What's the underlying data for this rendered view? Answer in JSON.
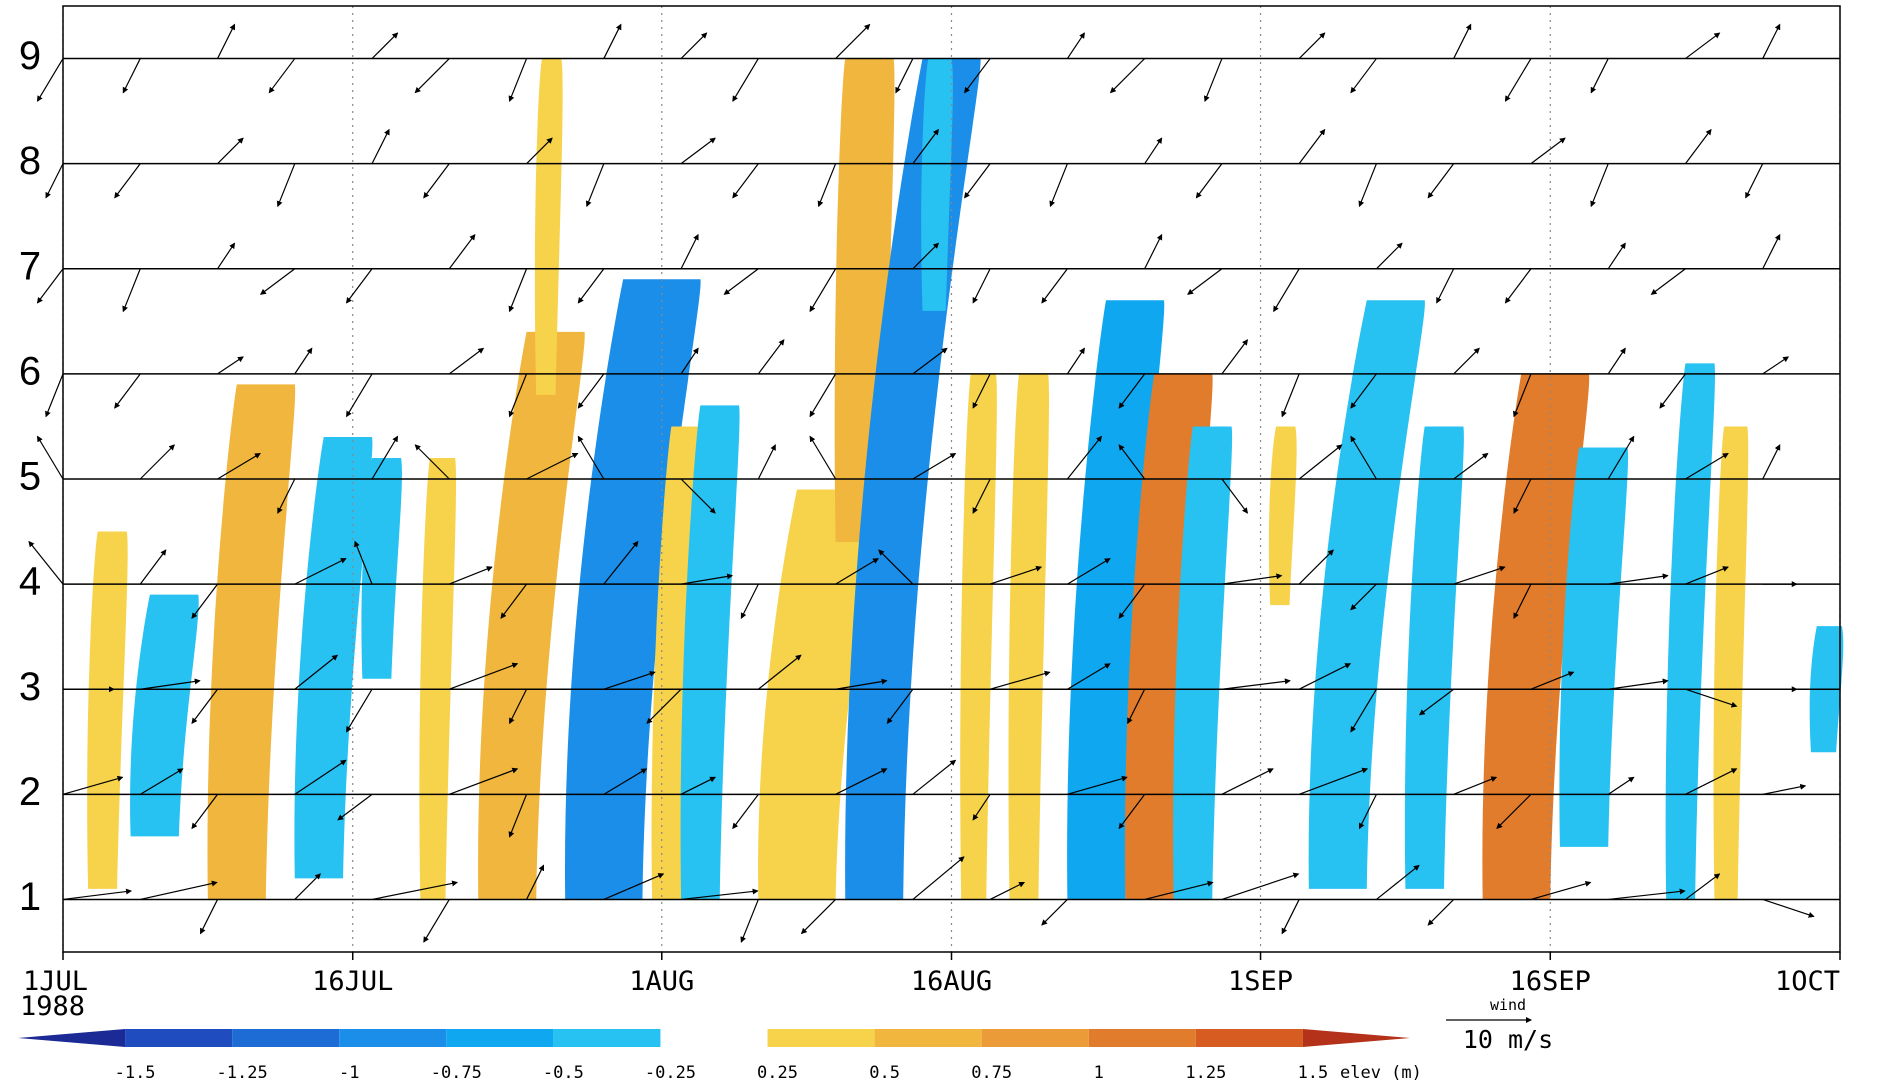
{
  "chart_data": {
    "type": "hovmoller",
    "year_label": "1988",
    "xlim": [
      0,
      92
    ],
    "xticks": [
      {
        "value": 0,
        "label": "1JUL"
      },
      {
        "value": 15,
        "label": "16JUL"
      },
      {
        "value": 31,
        "label": "1AUG"
      },
      {
        "value": 46,
        "label": "16AUG"
      },
      {
        "value": 62,
        "label": "1SEP"
      },
      {
        "value": 77,
        "label": "16SEP"
      },
      {
        "value": 92,
        "label": "1OCT"
      }
    ],
    "ylim": [
      0.5,
      9.5
    ],
    "yticks": [
      1,
      2,
      3,
      4,
      5,
      6,
      7,
      8,
      9
    ],
    "grid": true,
    "colorbar": {
      "label": "elev (m)",
      "levels": [
        -1.5,
        -1.25,
        -1,
        -0.75,
        -0.5,
        -0.25,
        0.25,
        0.5,
        0.75,
        1,
        1.25,
        1.5
      ],
      "colors": [
        "#1b2a94",
        "#1f4cbf",
        "#1d6bd5",
        "#1a8ee8",
        "#0fa8f0",
        "#27c2f2",
        "#ffffff",
        "#f7d34c",
        "#f1b63d",
        "#eb9c38",
        "#e17c2d",
        "#d75c22",
        "#b5321a"
      ]
    },
    "elevation": [
      {
        "day": 1.3,
        "width": 1.5,
        "from": 1.1,
        "to": 4.5,
        "tilt": 0.5,
        "value": 0.3
      },
      {
        "day": 3.5,
        "width": 2.5,
        "from": 1.6,
        "to": 3.9,
        "tilt": 1,
        "value": -0.4
      },
      {
        "day": 7.5,
        "width": 3,
        "from": 1.0,
        "to": 5.9,
        "tilt": 1.5,
        "value": 0.6
      },
      {
        "day": 12,
        "width": 2.5,
        "from": 1.2,
        "to": 5.4,
        "tilt": 1.5,
        "value": -0.4
      },
      {
        "day": 15.5,
        "width": 1.5,
        "from": 3.1,
        "to": 5.2,
        "tilt": 0.5,
        "value": -0.3
      },
      {
        "day": 18.5,
        "width": 1.3,
        "from": 1.0,
        "to": 5.2,
        "tilt": 0.5,
        "value": 0.3
      },
      {
        "day": 21.5,
        "width": 3,
        "from": 1.0,
        "to": 6.4,
        "tilt": 2.5,
        "value": 0.6
      },
      {
        "day": 24.5,
        "width": 1,
        "from": 5.8,
        "to": 9.0,
        "tilt": 0.3,
        "value": 0.3
      },
      {
        "day": 26,
        "width": 4,
        "from": 1.0,
        "to": 6.9,
        "tilt": 3,
        "value": -0.8
      },
      {
        "day": 30.5,
        "width": 2,
        "from": 1.0,
        "to": 5.5,
        "tilt": 1,
        "value": 0.3
      },
      {
        "day": 32,
        "width": 2,
        "from": 1.0,
        "to": 5.7,
        "tilt": 1,
        "value": -0.4
      },
      {
        "day": 36,
        "width": 4,
        "from": 1.0,
        "to": 4.9,
        "tilt": 2,
        "value": 0.4
      },
      {
        "day": 40,
        "width": 2.5,
        "from": 4.4,
        "to": 9.0,
        "tilt": 0.5,
        "value": 0.5
      },
      {
        "day": 40.5,
        "width": 3,
        "from": 1.0,
        "to": 9.0,
        "tilt": 4,
        "value": -0.9
      },
      {
        "day": 44.5,
        "width": 1.2,
        "from": 6.6,
        "to": 9.0,
        "tilt": 0.3,
        "value": -0.4
      },
      {
        "day": 46.5,
        "width": 1.3,
        "from": 1.0,
        "to": 6.0,
        "tilt": 0.5,
        "value": 0.3
      },
      {
        "day": 49,
        "width": 1.5,
        "from": 1.0,
        "to": 6.0,
        "tilt": 0.5,
        "value": 0.25
      },
      {
        "day": 52,
        "width": 3,
        "from": 1.0,
        "to": 6.7,
        "tilt": 2,
        "value": -0.6
      },
      {
        "day": 55,
        "width": 3,
        "from": 1.0,
        "to": 6.0,
        "tilt": 1.5,
        "value": 1.1
      },
      {
        "day": 57.5,
        "width": 2,
        "from": 1.0,
        "to": 5.5,
        "tilt": 1,
        "value": -0.5
      },
      {
        "day": 62.5,
        "width": 1,
        "from": 3.8,
        "to": 5.5,
        "tilt": 0.3,
        "value": 0.3
      },
      {
        "day": 64.5,
        "width": 3,
        "from": 1.1,
        "to": 6.7,
        "tilt": 3,
        "value": -0.5
      },
      {
        "day": 69.5,
        "width": 2,
        "from": 1.1,
        "to": 5.5,
        "tilt": 1,
        "value": -0.4
      },
      {
        "day": 73.5,
        "width": 3.5,
        "from": 1.0,
        "to": 6.0,
        "tilt": 2,
        "value": 1.0
      },
      {
        "day": 77.5,
        "width": 2.5,
        "from": 1.5,
        "to": 5.3,
        "tilt": 1,
        "value": -0.5
      },
      {
        "day": 83,
        "width": 1.5,
        "from": 1.0,
        "to": 6.1,
        "tilt": 1,
        "value": -0.5
      },
      {
        "day": 85.5,
        "width": 1.2,
        "from": 1.0,
        "to": 5.5,
        "tilt": 0.5,
        "value": 0.3
      },
      {
        "day": 90.5,
        "width": 1.3,
        "from": 2.4,
        "to": 3.6,
        "tilt": 0.3,
        "value": -0.3
      }
    ],
    "wind_key": {
      "title": "wind",
      "label": "10 m/s",
      "speed": 10
    },
    "wind_days": [
      0,
      4,
      8,
      12,
      16,
      20,
      24,
      28,
      32,
      36,
      40,
      44,
      48,
      52,
      56,
      60,
      64,
      68,
      72,
      76,
      80,
      84,
      88
    ],
    "wind": [
      {
        "u": [
          8,
          9,
          -2,
          3,
          10,
          -3,
          2,
          7,
          9,
          -2,
          -4,
          6,
          4,
          -3,
          8,
          9,
          -2,
          5,
          -3,
          7,
          9,
          4,
          6
        ],
        "v": [
          1,
          2,
          -4,
          3,
          2,
          -5,
          4,
          3,
          1,
          -5,
          -4,
          5,
          2,
          -3,
          2,
          3,
          -4,
          4,
          -3,
          2,
          1,
          3,
          -2
        ]
      },
      {
        "u": [
          7,
          5,
          -3,
          6,
          -4,
          8,
          -2,
          5,
          4,
          -3,
          6,
          5,
          -2,
          7,
          -3,
          6,
          8,
          -2,
          5,
          -4,
          3,
          6,
          5
        ],
        "v": [
          2,
          3,
          -4,
          4,
          -3,
          3,
          -5,
          3,
          2,
          -4,
          3,
          4,
          -3,
          2,
          -4,
          3,
          3,
          -4,
          2,
          -4,
          2,
          3,
          1
        ]
      },
      {
        "u": [
          6,
          7,
          -3,
          5,
          -3,
          8,
          -2,
          6,
          -4,
          5,
          6,
          -3,
          7,
          5,
          -2,
          8,
          6,
          -3,
          -4,
          5,
          7,
          6,
          4
        ],
        "v": [
          0,
          1,
          -4,
          4,
          -5,
          3,
          -4,
          2,
          -4,
          4,
          1,
          -4,
          2,
          3,
          -4,
          1,
          3,
          -5,
          -3,
          2,
          1,
          -2,
          0
        ]
      },
      {
        "u": [
          -4,
          3,
          -3,
          6,
          -2,
          5,
          -3,
          4,
          6,
          -2,
          5,
          -4,
          6,
          5,
          -3,
          7,
          4,
          -3,
          6,
          -2,
          7,
          5,
          4
        ],
        "v": [
          5,
          4,
          -4,
          3,
          5,
          2,
          -4,
          5,
          1,
          -4,
          3,
          4,
          2,
          3,
          -4,
          1,
          4,
          -3,
          2,
          -4,
          1,
          2,
          0
        ]
      },
      {
        "u": [
          -3,
          4,
          5,
          -2,
          3,
          -4,
          6,
          -3,
          4,
          2,
          -3,
          5,
          -2,
          4,
          -3,
          3,
          5,
          -3,
          4,
          -2,
          3,
          5,
          2
        ],
        "v": [
          5,
          4,
          3,
          -4,
          5,
          4,
          3,
          5,
          -4,
          4,
          5,
          3,
          -4,
          5,
          4,
          -4,
          4,
          5,
          3,
          -4,
          5,
          3,
          4
        ]
      },
      {
        "u": [
          -2,
          -3,
          3,
          2,
          -3,
          4,
          -2,
          -3,
          2,
          3,
          -3,
          4,
          -2,
          2,
          -3,
          3,
          -2,
          -3,
          3,
          -2,
          2,
          -3,
          3
        ],
        "v": [
          -5,
          -4,
          2,
          3,
          -5,
          3,
          -5,
          -4,
          3,
          4,
          -5,
          3,
          -4,
          3,
          -4,
          4,
          -5,
          -4,
          3,
          -5,
          3,
          -4,
          2
        ]
      },
      {
        "u": [
          -3,
          -2,
          2,
          -4,
          -3,
          3,
          -2,
          -3,
          2,
          -4,
          -3,
          3,
          -2,
          -3,
          2,
          -4,
          -3,
          3,
          -2,
          -3,
          2,
          -4,
          2
        ],
        "v": [
          -4,
          -5,
          3,
          -3,
          -4,
          4,
          -5,
          -4,
          4,
          -3,
          -5,
          3,
          -4,
          -4,
          4,
          -3,
          -5,
          3,
          -4,
          -4,
          3,
          -3,
          4
        ]
      },
      {
        "u": [
          -2,
          -3,
          3,
          -2,
          2,
          -3,
          3,
          -2,
          4,
          -3,
          -2,
          3,
          -3,
          -2,
          2,
          -3,
          3,
          -2,
          -3,
          4,
          -2,
          3,
          -2
        ],
        "v": [
          -4,
          -4,
          3,
          -5,
          4,
          -4,
          3,
          -5,
          3,
          -4,
          -5,
          4,
          -4,
          -5,
          3,
          -4,
          4,
          -5,
          -4,
          3,
          -5,
          4,
          -4
        ]
      },
      {
        "u": [
          -3,
          -2,
          2,
          -3,
          3,
          -4,
          -2,
          2,
          3,
          -3,
          4,
          -2,
          -3,
          2,
          -4,
          -2,
          3,
          -3,
          2,
          -3,
          -2,
          4,
          2
        ],
        "v": [
          -5,
          -4,
          4,
          -4,
          3,
          -4,
          -5,
          4,
          3,
          -5,
          4,
          -4,
          -4,
          3,
          -4,
          -5,
          3,
          -4,
          4,
          -5,
          -4,
          3,
          4
        ]
      }
    ]
  }
}
